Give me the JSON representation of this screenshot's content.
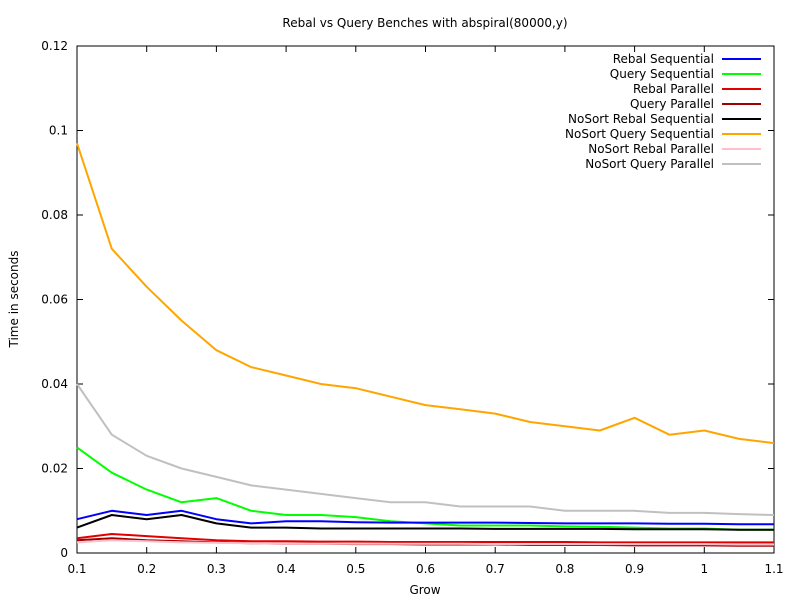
{
  "chart_data": {
    "type": "line",
    "title": "Rebal vs Query Benches with abspiral(80000,y)",
    "xlabel": "Grow",
    "ylabel": "Time in seconds",
    "xlim": [
      0.1,
      1.1
    ],
    "ylim": [
      0,
      0.12
    ],
    "x_ticks": [
      "0.1",
      "0.2",
      "0.3",
      "0.4",
      "0.5",
      "0.6",
      "0.7",
      "0.8",
      "0.9",
      "1",
      "1.1"
    ],
    "y_ticks": [
      "0",
      "0.02",
      "0.04",
      "0.06",
      "0.08",
      "0.1",
      "0.12"
    ],
    "grid": false,
    "legend_position": "top-right",
    "x": [
      0.1,
      0.15,
      0.2,
      0.25,
      0.3,
      0.35,
      0.4,
      0.45,
      0.5,
      0.55,
      0.6,
      0.65,
      0.7,
      0.75,
      0.8,
      0.85,
      0.9,
      0.95,
      1.0,
      1.05,
      1.1
    ],
    "series": [
      {
        "name": "Rebal Sequential",
        "color": "#0000ff",
        "values": [
          0.008,
          0.01,
          0.009,
          0.01,
          0.008,
          0.007,
          0.0075,
          0.0075,
          0.0073,
          0.0072,
          0.0072,
          0.0072,
          0.0072,
          0.0071,
          0.007,
          0.007,
          0.007,
          0.0069,
          0.0069,
          0.0068,
          0.0068
        ]
      },
      {
        "name": "Query Sequential",
        "color": "#00ff00",
        "values": [
          0.025,
          0.019,
          0.015,
          0.012,
          0.013,
          0.01,
          0.009,
          0.009,
          0.0085,
          0.0075,
          0.007,
          0.0065,
          0.0065,
          0.0065,
          0.0063,
          0.0062,
          0.006,
          0.0058,
          0.0058,
          0.0055,
          0.0055
        ]
      },
      {
        "name": "Rebal Parallel",
        "color": "#e00000",
        "values": [
          0.0035,
          0.0045,
          0.004,
          0.0035,
          0.003,
          0.0028,
          0.0028,
          0.0027,
          0.0027,
          0.0026,
          0.0026,
          0.0026,
          0.0026,
          0.0026,
          0.0026,
          0.0025,
          0.0025,
          0.0025,
          0.0025,
          0.0025,
          0.0025
        ]
      },
      {
        "name": "Query Parallel",
        "color": "#a00000",
        "values": [
          0.003,
          0.0035,
          0.003,
          0.0028,
          0.0025,
          0.0023,
          0.0022,
          0.0022,
          0.0021,
          0.0021,
          0.002,
          0.002,
          0.002,
          0.0019,
          0.0019,
          0.0019,
          0.0018,
          0.0018,
          0.0018,
          0.0017,
          0.0017
        ]
      },
      {
        "name": "NoSort Rebal Sequential",
        "color": "#000000",
        "values": [
          0.006,
          0.009,
          0.008,
          0.009,
          0.007,
          0.006,
          0.006,
          0.0058,
          0.0058,
          0.0058,
          0.0058,
          0.0058,
          0.0057,
          0.0057,
          0.0057,
          0.0057,
          0.0056,
          0.0056,
          0.0056,
          0.0055,
          0.0055
        ]
      },
      {
        "name": "NoSort Query Sequential",
        "color": "#ffa500",
        "values": [
          0.097,
          0.072,
          0.063,
          0.055,
          0.048,
          0.044,
          0.042,
          0.04,
          0.039,
          0.037,
          0.035,
          0.034,
          0.033,
          0.031,
          0.03,
          0.029,
          0.032,
          0.028,
          0.029,
          0.027,
          0.026
        ]
      },
      {
        "name": "NoSort Rebal Parallel",
        "color": "#ffc0cb",
        "values": [
          0.0025,
          0.003,
          0.0028,
          0.0025,
          0.0024,
          0.0023,
          0.0022,
          0.0022,
          0.0022,
          0.0022,
          0.0022,
          0.0022,
          0.0021,
          0.0021,
          0.0021,
          0.0021,
          0.0021,
          0.0021,
          0.0021,
          0.002,
          0.002
        ]
      },
      {
        "name": "NoSort Query Parallel",
        "color": "#c0c0c0",
        "values": [
          0.04,
          0.028,
          0.023,
          0.02,
          0.018,
          0.016,
          0.015,
          0.014,
          0.013,
          0.012,
          0.012,
          0.011,
          0.011,
          0.011,
          0.01,
          0.01,
          0.01,
          0.0095,
          0.0095,
          0.0092,
          0.009
        ]
      }
    ]
  }
}
